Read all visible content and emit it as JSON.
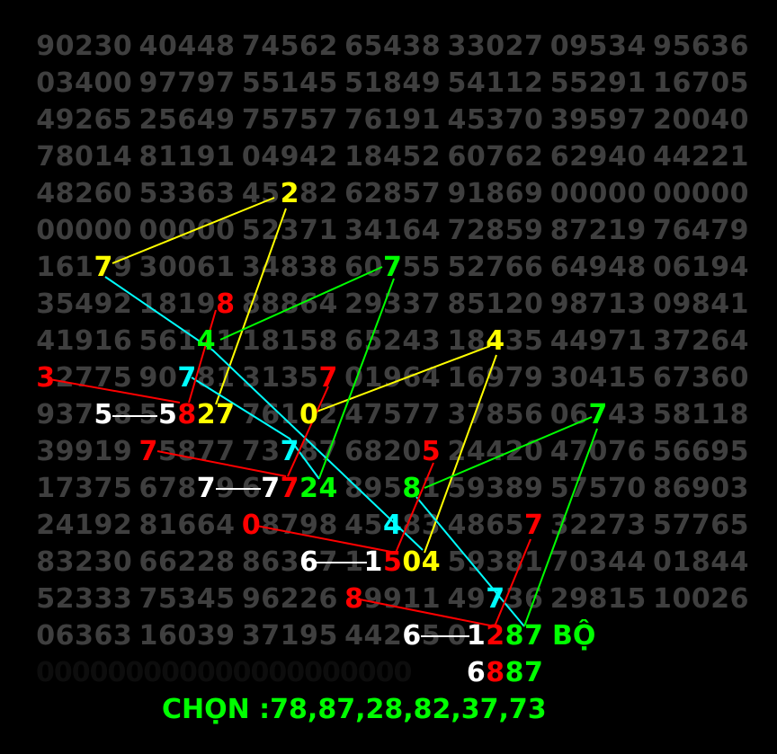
{
  "grid": {
    "rows": [
      "90230 40448 74562 65438 33027 09534 95636",
      "03400 97797 55145 51849 54112 55291 16705",
      "49265 25649 75757 76191 45370 39597 20040",
      "78014 81191 04942 18452 60762 62940 44221",
      "48260 53363 45282 62857 91869 00000 00000",
      "00000 00000 52371 34164 72859 87219 76479",
      "16179 30061 34838 60755 52766 64948 06194",
      "35492 18198 88864 29337 85120 98713 09841",
      "41916 56141 18158 65243 18435 44971 37264",
      "32775 90781 31357 01964 16979 30415 67360",
      "93758 55827 76102 47577 37856 06743 58118",
      "39919 75877 73787 68205 24420 47076 56695",
      "17375 67879 67724 89581 59389 57570 86903",
      "24192 81664 08798 45483 48657 32273 57765",
      "83230 66228 86367 11504 59381 70344 01844",
      "52333 75345 96226 89911 49736 29815 10026",
      "06363 16039 37195 44265 01287"
    ],
    "digit_color": "#3f3f3f"
  },
  "colors": {
    "yellow": "#ffff00",
    "red": "#ff0000",
    "green": "#00ff00",
    "cyan": "#00ffff",
    "white": "#ffffff"
  },
  "highlights": [
    {
      "row": 4,
      "group": 2,
      "index": 2,
      "color": "yellow"
    },
    {
      "row": 6,
      "group": 0,
      "index": 3,
      "color": "yellow"
    },
    {
      "row": 6,
      "group": 3,
      "index": 2,
      "color": "green"
    },
    {
      "row": 7,
      "group": 1,
      "index": 4,
      "color": "red"
    },
    {
      "row": 8,
      "group": 1,
      "index": 3,
      "color": "green"
    },
    {
      "row": 8,
      "group": 4,
      "index": 2,
      "color": "yellow"
    },
    {
      "row": 9,
      "group": 0,
      "index": 0,
      "color": "red"
    },
    {
      "row": 9,
      "group": 1,
      "index": 2,
      "color": "cyan"
    },
    {
      "row": 9,
      "group": 2,
      "index": 4,
      "color": "red"
    },
    {
      "row": 10,
      "group": 0,
      "index": 3,
      "color": "white"
    },
    {
      "row": 10,
      "group": 1,
      "index": 1,
      "color": "white"
    },
    {
      "row": 10,
      "group": 1,
      "index": 2,
      "color": "red"
    },
    {
      "row": 10,
      "group": 1,
      "index": 3,
      "color": "yellow"
    },
    {
      "row": 10,
      "group": 1,
      "index": 4,
      "color": "yellow"
    },
    {
      "row": 10,
      "group": 2,
      "index": 3,
      "color": "yellow"
    },
    {
      "row": 10,
      "group": 5,
      "index": 2,
      "color": "green"
    },
    {
      "row": 11,
      "group": 1,
      "index": 0,
      "color": "red"
    },
    {
      "row": 11,
      "group": 2,
      "index": 2,
      "color": "cyan"
    },
    {
      "row": 11,
      "group": 3,
      "index": 4,
      "color": "red"
    },
    {
      "row": 12,
      "group": 1,
      "index": 3,
      "color": "white"
    },
    {
      "row": 12,
      "group": 2,
      "index": 1,
      "color": "white"
    },
    {
      "row": 12,
      "group": 2,
      "index": 2,
      "color": "red"
    },
    {
      "row": 12,
      "group": 2,
      "index": 3,
      "color": "green"
    },
    {
      "row": 12,
      "group": 2,
      "index": 4,
      "color": "green"
    },
    {
      "row": 12,
      "group": 3,
      "index": 3,
      "color": "green"
    },
    {
      "row": 13,
      "group": 2,
      "index": 0,
      "color": "red"
    },
    {
      "row": 13,
      "group": 3,
      "index": 2,
      "color": "cyan"
    },
    {
      "row": 13,
      "group": 4,
      "index": 4,
      "color": "red"
    },
    {
      "row": 14,
      "group": 2,
      "index": 3,
      "color": "white"
    },
    {
      "row": 14,
      "group": 3,
      "index": 1,
      "color": "white"
    },
    {
      "row": 14,
      "group": 3,
      "index": 2,
      "color": "red"
    },
    {
      "row": 14,
      "group": 3,
      "index": 3,
      "color": "yellow"
    },
    {
      "row": 14,
      "group": 3,
      "index": 4,
      "color": "yellow"
    },
    {
      "row": 15,
      "group": 3,
      "index": 0,
      "color": "red"
    },
    {
      "row": 15,
      "group": 4,
      "index": 2,
      "color": "cyan"
    },
    {
      "row": 16,
      "group": 3,
      "index": 3,
      "color": "white"
    },
    {
      "row": 16,
      "group": 4,
      "index": 1,
      "color": "white"
    },
    {
      "row": 16,
      "group": 4,
      "index": 2,
      "color": "red"
    },
    {
      "row": 16,
      "group": 4,
      "index": 3,
      "color": "green"
    },
    {
      "row": 16,
      "group": 4,
      "index": 4,
      "color": "green"
    }
  ],
  "bo_label": "BỘ",
  "faint_row": "000000000000000000000",
  "result": {
    "digits": [
      "6",
      "8",
      "8",
      "7"
    ],
    "colors": [
      "white",
      "red",
      "green",
      "green"
    ]
  },
  "choose_label": "CHỌN :78,87,28,82,37,73"
}
